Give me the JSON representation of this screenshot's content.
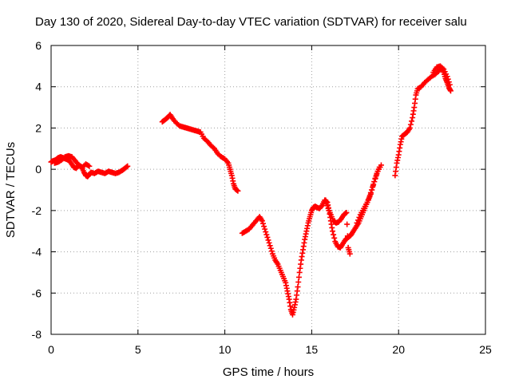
{
  "chart_data": {
    "type": "scatter",
    "title": "Day 130 of 2020, Sidereal Day-to-day VTEC variation (SDTVAR) for receiver salu",
    "xlabel": "GPS time / hours",
    "ylabel": "SDTVAR / TECUs",
    "xlim": [
      0,
      25
    ],
    "ylim": [
      -8,
      6
    ],
    "xticks": [
      0,
      5,
      10,
      15,
      20,
      25
    ],
    "yticks": [
      -8,
      -6,
      -4,
      -2,
      0,
      2,
      4,
      6
    ],
    "grid": true,
    "marker": "+",
    "color": "#ff0000",
    "series": [
      {
        "x": [
          0.0,
          0.1,
          0.25,
          0.4,
          0.55,
          0.7,
          0.85,
          1.0,
          1.15,
          1.3,
          1.45,
          1.6,
          1.75,
          1.9,
          2.0,
          2.1,
          2.2,
          2.3,
          2.5,
          2.7,
          2.9,
          3.1,
          3.3,
          3.5,
          3.7,
          3.9,
          4.1,
          4.25,
          4.4
        ],
        "y": [
          0.35,
          0.4,
          0.45,
          0.55,
          0.6,
          0.55,
          0.5,
          0.45,
          0.3,
          0.1,
          0.05,
          0.2,
          0.1,
          -0.15,
          -0.3,
          -0.35,
          -0.25,
          -0.15,
          -0.2,
          -0.1,
          -0.15,
          -0.2,
          -0.1,
          -0.15,
          -0.2,
          -0.15,
          -0.05,
          0.05,
          0.15
        ]
      },
      {
        "x": [
          0.2,
          0.4,
          0.6,
          0.8,
          1.0,
          1.2,
          1.4,
          1.6,
          1.8,
          2.0,
          2.2
        ],
        "y": [
          0.3,
          0.35,
          0.45,
          0.6,
          0.65,
          0.6,
          0.4,
          0.2,
          0.1,
          0.25,
          0.15
        ]
      },
      {
        "x": [
          6.4,
          6.55,
          6.7,
          6.85,
          7.0,
          7.2,
          7.4,
          7.6,
          7.8,
          8.0,
          8.2,
          8.4,
          8.6,
          8.8,
          9.0,
          9.2,
          9.4,
          9.6,
          9.8,
          10.0,
          10.2,
          10.3,
          10.4,
          10.5,
          10.6,
          10.75
        ],
        "y": [
          2.3,
          2.4,
          2.5,
          2.65,
          2.45,
          2.25,
          2.1,
          2.05,
          2.0,
          1.95,
          1.9,
          1.85,
          1.8,
          1.5,
          1.35,
          1.15,
          1.0,
          0.75,
          0.6,
          0.5,
          0.3,
          0.0,
          -0.3,
          -0.7,
          -0.95,
          -1.05
        ]
      },
      {
        "x": [
          11.0,
          11.2,
          11.4,
          11.6,
          11.8,
          12.0,
          12.15,
          12.3,
          12.45,
          12.6,
          12.75,
          12.9,
          13.05,
          13.2,
          13.35,
          13.5,
          13.6,
          13.7,
          13.8,
          13.9,
          14.0,
          14.1,
          14.2,
          14.3,
          14.4,
          14.5,
          14.6,
          14.7,
          14.8,
          14.9,
          15.0,
          15.1,
          15.2,
          15.3,
          15.45,
          15.6,
          15.75,
          15.9,
          16.0,
          16.1,
          16.2,
          16.35,
          16.5,
          16.65,
          16.8,
          16.95,
          17.1,
          17.25,
          17.4,
          17.55,
          17.7,
          17.85,
          18.0,
          18.15,
          18.3,
          18.45,
          18.6,
          18.75,
          18.9
        ],
        "y": [
          -3.1,
          -3.0,
          -2.9,
          -2.7,
          -2.5,
          -2.3,
          -2.5,
          -2.9,
          -3.3,
          -3.7,
          -4.1,
          -4.4,
          -4.6,
          -4.9,
          -5.2,
          -5.5,
          -5.9,
          -6.3,
          -6.8,
          -7.05,
          -6.7,
          -6.3,
          -5.7,
          -5.0,
          -4.4,
          -3.9,
          -3.4,
          -3.0,
          -2.6,
          -2.3,
          -2.0,
          -1.85,
          -1.8,
          -1.85,
          -1.9,
          -1.75,
          -1.5,
          -1.6,
          -2.0,
          -2.5,
          -3.0,
          -3.5,
          -3.75,
          -3.8,
          -3.6,
          -3.4,
          -3.3,
          -3.2,
          -3.0,
          -2.8,
          -2.6,
          -2.3,
          -2.0,
          -1.7,
          -1.4,
          -1.0,
          -0.6,
          -0.2,
          0.1
        ]
      },
      {
        "x": [
          15.8,
          15.95,
          16.1,
          16.25,
          16.4,
          16.55,
          16.7,
          16.85,
          17.0,
          17.1,
          17.2
        ],
        "y": [
          -1.5,
          -1.9,
          -2.2,
          -2.5,
          -2.6,
          -2.55,
          -2.4,
          -2.2,
          -2.1,
          -3.8,
          -4.1
        ]
      },
      {
        "x": [
          17.6,
          17.8,
          18.0,
          18.2,
          18.4,
          18.6,
          18.8,
          19.0
        ],
        "y": [
          -2.6,
          -2.2,
          -1.9,
          -1.6,
          -1.2,
          -0.6,
          -0.1,
          0.2
        ]
      },
      {
        "x": [
          19.8,
          19.9,
          20.0,
          20.1,
          20.2,
          20.35,
          20.5,
          20.65,
          20.8,
          20.9,
          21.0,
          21.1,
          21.3,
          21.5,
          21.7,
          21.9,
          22.1,
          22.3,
          22.5,
          22.6,
          22.7,
          22.8,
          22.9,
          23.0
        ],
        "y": [
          -0.3,
          0.3,
          0.7,
          1.2,
          1.6,
          1.7,
          1.8,
          2.0,
          2.5,
          3.0,
          3.6,
          3.9,
          4.0,
          4.2,
          4.35,
          4.5,
          4.6,
          4.75,
          4.9,
          4.7,
          4.4,
          4.2,
          3.95,
          3.8
        ]
      },
      {
        "x": [
          22.0,
          22.2,
          22.4,
          22.6,
          22.8,
          22.95
        ],
        "y": [
          4.7,
          4.95,
          5.0,
          4.85,
          4.5,
          4.1
        ]
      }
    ]
  }
}
